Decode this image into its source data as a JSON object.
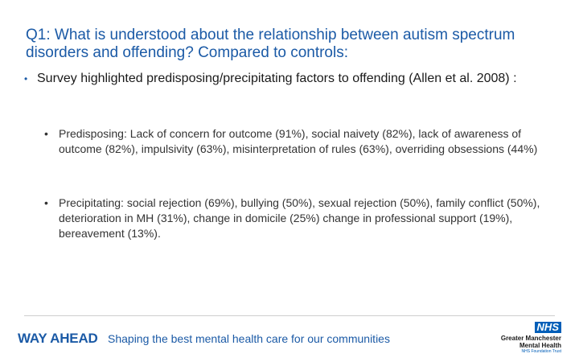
{
  "slide": {
    "title": "Q1: What is understood about the relationship between autism spectrum disorders and offending? Compared to controls:",
    "main_bullet": {
      "marker": "•",
      "text": "Survey highlighted predisposing/precipitating factors to offending (Allen et al. 2008) :"
    },
    "sub_bullets": [
      {
        "marker": "•",
        "text": "Predisposing: Lack of concern for outcome (91%), social naivety (82%), lack of awareness of outcome (82%), impulsivity (63%), misinterpretation of rules (63%), overriding obsessions (44%)"
      },
      {
        "marker": "•",
        "text": "Precipitating: social rejection (69%), bullying (50%), sexual rejection (50%), family conflict (50%), deterioration in MH (31%), change in domicile (25%) change in professional support (19%), bereavement (13%)."
      }
    ]
  },
  "footer": {
    "brand": "WAY AHEAD",
    "tagline": "Shaping the best mental health care for our communities",
    "nhs": {
      "logo_text": "NHS",
      "org_line1": "Greater Manchester",
      "org_line2": "Mental Health",
      "trust_line": "NHS Foundation Trust"
    }
  },
  "colors": {
    "title": "#1b5aa6",
    "brand_blue": "#1b5aa6",
    "nhs_blue": "#005eb8",
    "body_text": "#333333"
  }
}
